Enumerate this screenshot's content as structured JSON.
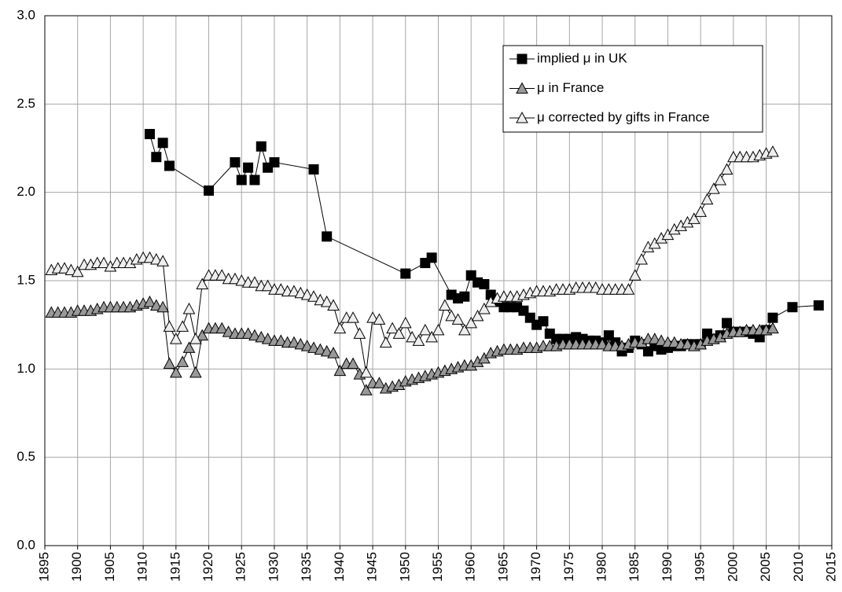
{
  "chart_data": {
    "type": "line",
    "xlim": [
      1895,
      2015
    ],
    "xticks": [
      1895,
      1900,
      1905,
      1910,
      1915,
      1920,
      1925,
      1930,
      1935,
      1940,
      1945,
      1950,
      1955,
      1960,
      1965,
      1970,
      1975,
      1980,
      1985,
      1990,
      1995,
      2000,
      2005,
      2010,
      2015
    ],
    "ylim": [
      0,
      3
    ],
    "yticks": [
      {
        "value": 0,
        "label": "0.0"
      },
      0.5,
      {
        "value": 1,
        "label": "1.0"
      },
      1.5,
      {
        "value": 2,
        "label": "2.0"
      },
      2.5,
      {
        "value": 3,
        "label": "3.0"
      }
    ],
    "grid": true,
    "legend": "upper right",
    "series": [
      {
        "name": "implied μ in UK",
        "marker": "square",
        "color": "#000000",
        "x": [
          1911,
          1912,
          1913,
          1914,
          1920,
          1924,
          1925,
          1926,
          1927,
          1928,
          1929,
          1930,
          1936,
          1938,
          1950,
          1953,
          1954,
          1957,
          1958,
          1959,
          1960,
          1961,
          1962,
          1963,
          1964,
          1965,
          1966,
          1967,
          1968,
          1969,
          1970,
          1971,
          1972,
          1973,
          1974,
          1975,
          1976,
          1977,
          1978,
          1979,
          1980,
          1981,
          1982,
          1983,
          1984,
          1985,
          1986,
          1987,
          1988,
          1989,
          1990,
          1991,
          1992,
          1993,
          1994,
          1995,
          1996,
          1997,
          1998,
          1999,
          2000,
          2001,
          2002,
          2003,
          2004,
          2005,
          2006,
          2009,
          2013
        ],
        "values": [
          2.33,
          2.2,
          2.28,
          2.15,
          2.01,
          2.17,
          2.07,
          2.14,
          2.07,
          2.26,
          2.14,
          2.17,
          2.13,
          1.75,
          1.54,
          1.6,
          1.63,
          1.42,
          1.4,
          1.41,
          1.53,
          1.49,
          1.48,
          1.42,
          1.38,
          1.35,
          1.35,
          1.35,
          1.33,
          1.29,
          1.25,
          1.27,
          1.2,
          1.17,
          1.17,
          1.17,
          1.18,
          1.17,
          1.16,
          1.16,
          1.15,
          1.19,
          1.15,
          1.1,
          1.12,
          1.16,
          1.14,
          1.1,
          1.13,
          1.11,
          1.12,
          1.13,
          1.13,
          1.14,
          1.14,
          1.14,
          1.2,
          1.17,
          1.19,
          1.26,
          1.21,
          1.21,
          1.21,
          1.2,
          1.18,
          1.22,
          1.29,
          1.35,
          1.36
        ]
      },
      {
        "name": "μ in France",
        "marker": "triangle",
        "color": "#999999",
        "x": [
          1896,
          1897,
          1898,
          1899,
          1900,
          1901,
          1902,
          1903,
          1904,
          1905,
          1906,
          1907,
          1908,
          1909,
          1910,
          1911,
          1912,
          1913,
          1914,
          1915,
          1916,
          1917,
          1918,
          1919,
          1920,
          1921,
          1922,
          1923,
          1924,
          1925,
          1926,
          1927,
          1928,
          1929,
          1930,
          1931,
          1932,
          1933,
          1934,
          1935,
          1936,
          1937,
          1938,
          1939,
          1940,
          1941,
          1942,
          1943,
          1944,
          1945,
          1946,
          1947,
          1948,
          1949,
          1950,
          1951,
          1952,
          1953,
          1954,
          1955,
          1956,
          1957,
          1958,
          1959,
          1960,
          1961,
          1962,
          1963,
          1964,
          1965,
          1966,
          1967,
          1968,
          1969,
          1970,
          1971,
          1972,
          1973,
          1974,
          1975,
          1976,
          1977,
          1978,
          1979,
          1980,
          1981,
          1982,
          1983,
          1984,
          1985,
          1986,
          1987,
          1988,
          1989,
          1990,
          1991,
          1992,
          1993,
          1994,
          1995,
          1996,
          1997,
          1998,
          1999,
          2000,
          2001,
          2002,
          2003,
          2004,
          2005,
          2006
        ],
        "values": [
          1.32,
          1.32,
          1.32,
          1.32,
          1.33,
          1.33,
          1.33,
          1.34,
          1.35,
          1.35,
          1.35,
          1.35,
          1.35,
          1.36,
          1.37,
          1.38,
          1.36,
          1.35,
          1.03,
          0.98,
          1.04,
          1.12,
          0.98,
          1.19,
          1.23,
          1.23,
          1.23,
          1.21,
          1.2,
          1.2,
          1.2,
          1.19,
          1.18,
          1.17,
          1.16,
          1.16,
          1.15,
          1.15,
          1.14,
          1.13,
          1.12,
          1.11,
          1.1,
          1.09,
          0.99,
          1.03,
          1.03,
          0.97,
          0.88,
          0.92,
          0.92,
          0.89,
          0.9,
          0.91,
          0.93,
          0.94,
          0.95,
          0.96,
          0.97,
          0.98,
          0.99,
          1.0,
          1.01,
          1.02,
          1.02,
          1.04,
          1.06,
          1.09,
          1.1,
          1.11,
          1.11,
          1.11,
          1.12,
          1.12,
          1.12,
          1.13,
          1.13,
          1.13,
          1.14,
          1.14,
          1.14,
          1.14,
          1.14,
          1.14,
          1.14,
          1.13,
          1.13,
          1.13,
          1.14,
          1.15,
          1.15,
          1.17,
          1.17,
          1.16,
          1.15,
          1.15,
          1.14,
          1.14,
          1.13,
          1.14,
          1.16,
          1.17,
          1.18,
          1.2,
          1.21,
          1.21,
          1.22,
          1.22,
          1.22,
          1.22,
          1.23
        ]
      },
      {
        "name": "μ corrected by gifts in France",
        "marker": "triangle",
        "color": "#eeeeee",
        "x": [
          1896,
          1897,
          1898,
          1899,
          1900,
          1901,
          1902,
          1903,
          1904,
          1905,
          1906,
          1907,
          1908,
          1909,
          1910,
          1911,
          1912,
          1913,
          1914,
          1915,
          1916,
          1917,
          1918,
          1919,
          1920,
          1921,
          1922,
          1923,
          1924,
          1925,
          1926,
          1927,
          1928,
          1929,
          1930,
          1931,
          1932,
          1933,
          1934,
          1935,
          1936,
          1937,
          1938,
          1939,
          1940,
          1941,
          1942,
          1943,
          1944,
          1945,
          1946,
          1947,
          1948,
          1949,
          1950,
          1951,
          1952,
          1953,
          1954,
          1955,
          1956,
          1957,
          1958,
          1959,
          1960,
          1961,
          1962,
          1963,
          1964,
          1965,
          1966,
          1967,
          1968,
          1969,
          1970,
          1971,
          1972,
          1973,
          1974,
          1975,
          1976,
          1977,
          1978,
          1979,
          1980,
          1981,
          1982,
          1983,
          1984,
          1985,
          1986,
          1987,
          1988,
          1989,
          1990,
          1991,
          1992,
          1993,
          1994,
          1995,
          1996,
          1997,
          1998,
          1999,
          2000,
          2001,
          2002,
          2003,
          2004,
          2005,
          2006
        ],
        "values": [
          1.56,
          1.57,
          1.57,
          1.56,
          1.55,
          1.59,
          1.59,
          1.6,
          1.6,
          1.58,
          1.6,
          1.6,
          1.6,
          1.62,
          1.63,
          1.63,
          1.62,
          1.61,
          1.24,
          1.17,
          1.24,
          1.34,
          1.17,
          1.48,
          1.53,
          1.53,
          1.53,
          1.51,
          1.51,
          1.5,
          1.49,
          1.49,
          1.47,
          1.47,
          1.45,
          1.45,
          1.44,
          1.44,
          1.43,
          1.42,
          1.41,
          1.39,
          1.38,
          1.36,
          1.23,
          1.29,
          1.29,
          1.2,
          0.98,
          1.29,
          1.28,
          1.15,
          1.23,
          1.2,
          1.26,
          1.18,
          1.16,
          1.22,
          1.18,
          1.22,
          1.36,
          1.3,
          1.28,
          1.22,
          1.26,
          1.3,
          1.34,
          1.38,
          1.4,
          1.41,
          1.41,
          1.41,
          1.42,
          1.43,
          1.44,
          1.44,
          1.44,
          1.45,
          1.45,
          1.45,
          1.46,
          1.46,
          1.46,
          1.46,
          1.45,
          1.45,
          1.45,
          1.45,
          1.45,
          1.53,
          1.62,
          1.69,
          1.71,
          1.74,
          1.76,
          1.79,
          1.81,
          1.83,
          1.85,
          1.89,
          1.96,
          2.02,
          2.07,
          2.13,
          2.2,
          2.2,
          2.2,
          2.2,
          2.21,
          2.22,
          2.23
        ]
      }
    ]
  }
}
